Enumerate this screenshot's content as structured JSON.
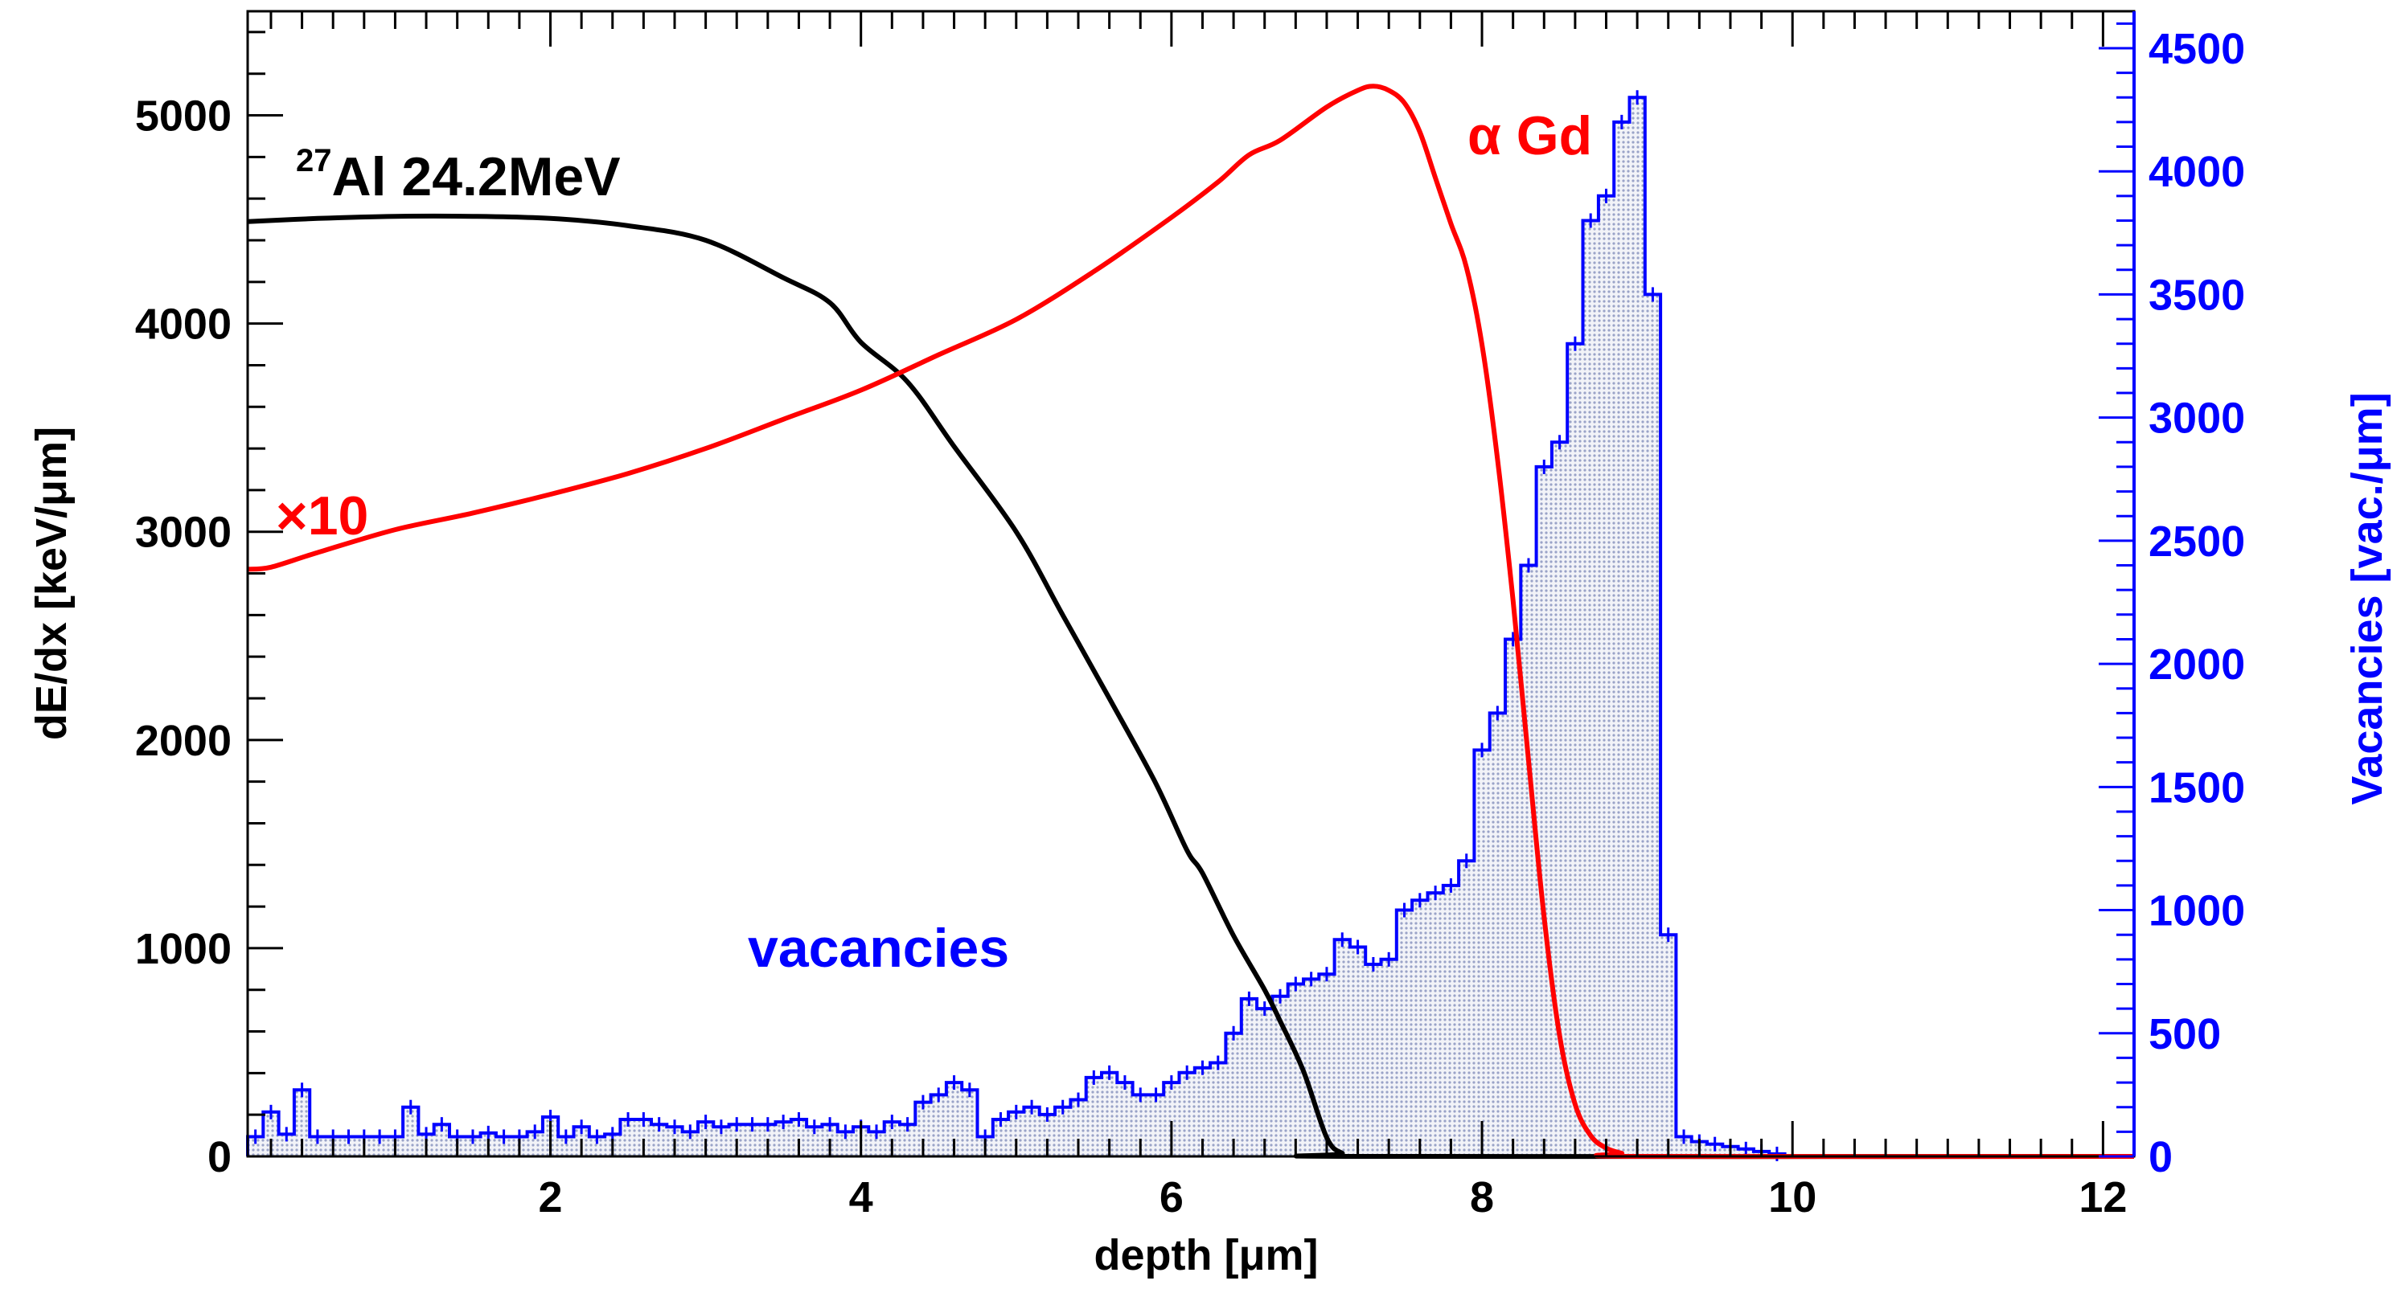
{
  "chart_data": {
    "type": "line",
    "title": "",
    "xlabel": "depth [μm]",
    "ylabel": "dE/dx [keV/μm]",
    "y2label": "Vacancies [vac./μm]",
    "xlim": [
      0.05,
      12.2
    ],
    "ylim": [
      0,
      5500
    ],
    "y2lim": [
      0,
      4650
    ],
    "x_ticks": [
      2,
      4,
      6,
      8,
      10,
      12
    ],
    "y_ticks": [
      0,
      1000,
      2000,
      3000,
      4000,
      5000
    ],
    "y2_ticks": [
      0,
      500,
      1000,
      1500,
      2000,
      2500,
      3000,
      3500,
      4000,
      4500
    ],
    "colors": {
      "al": "#000000",
      "alpha": "#ff0000",
      "vacancies": "#0000ff",
      "fill": "#9aa3c8"
    },
    "series": [
      {
        "name": "27Al 24.2MeV",
        "axis": "left",
        "x": [
          0.05,
          0.5,
          1.0,
          1.5,
          2.0,
          2.5,
          3.0,
          3.5,
          3.8,
          4.0,
          4.3,
          4.6,
          5.0,
          5.3,
          5.6,
          5.9,
          6.1,
          6.2,
          6.4,
          6.6,
          6.7,
          6.85,
          7.0,
          7.1,
          7.2,
          12.2
        ],
        "values": [
          4490,
          4505,
          4515,
          4515,
          4505,
          4470,
          4400,
          4220,
          4100,
          3910,
          3720,
          3410,
          3000,
          2600,
          2200,
          1790,
          1470,
          1360,
          1060,
          800,
          650,
          410,
          90,
          15,
          0,
          0
        ]
      },
      {
        "name": "α Gd (×10)",
        "axis": "left",
        "x": [
          0.05,
          0.2,
          0.5,
          1.0,
          1.5,
          2.0,
          2.5,
          3.0,
          3.5,
          4.0,
          4.5,
          5.0,
          5.5,
          6.0,
          6.3,
          6.5,
          6.7,
          7.0,
          7.2,
          7.3,
          7.4,
          7.5,
          7.6,
          7.7,
          7.8,
          7.9,
          8.0,
          8.1,
          8.2,
          8.3,
          8.4,
          8.5,
          8.6,
          8.7,
          8.8,
          8.9,
          9.0,
          12.2
        ],
        "values": [
          2820,
          2830,
          2900,
          3010,
          3090,
          3180,
          3280,
          3400,
          3540,
          3680,
          3850,
          4020,
          4250,
          4510,
          4680,
          4810,
          4880,
          5040,
          5120,
          5140,
          5120,
          5060,
          4920,
          4700,
          4480,
          4270,
          3900,
          3350,
          2670,
          1900,
          1150,
          580,
          250,
          100,
          40,
          15,
          0,
          0
        ]
      }
    ],
    "histogram": {
      "name": "vacancies",
      "axis": "right",
      "bin_width": 0.1,
      "x_start": 0.05,
      "values": [
        80,
        180,
        90,
        270,
        80,
        80,
        80,
        80,
        80,
        80,
        200,
        90,
        130,
        80,
        80,
        95,
        80,
        80,
        100,
        160,
        80,
        120,
        80,
        90,
        150,
        150,
        130,
        120,
        100,
        140,
        120,
        130,
        130,
        130,
        140,
        150,
        120,
        130,
        100,
        120,
        100,
        140,
        130,
        220,
        250,
        300,
        270,
        80,
        150,
        180,
        200,
        170,
        200,
        230,
        320,
        340,
        300,
        250,
        250,
        300,
        340,
        360,
        380,
        500,
        640,
        600,
        650,
        700,
        720,
        740,
        880,
        850,
        780,
        800,
        1000,
        1040,
        1070,
        1100,
        1200,
        1650,
        1800,
        2100,
        2400,
        2800,
        2900,
        3300,
        3800,
        3900,
        4200,
        4300,
        3500,
        900,
        80,
        60,
        50,
        40,
        30,
        20,
        10
      ],
      "tail_value": 0
    },
    "annotations": {
      "al_label": "Al 24.2MeV",
      "al_sup": "27",
      "alpha_label": "α Gd",
      "x10_label": "×10",
      "vacancies_label": "vacancies"
    }
  }
}
